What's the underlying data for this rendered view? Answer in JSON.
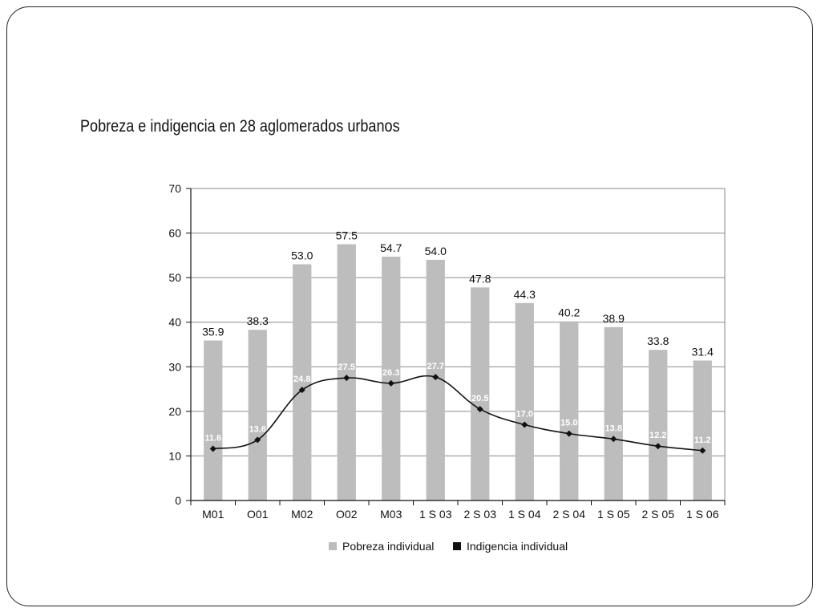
{
  "chart_data": {
    "type": "bar",
    "title": "Pobreza e indigencia en 28 aglomerados urbanos",
    "categories": [
      "M01",
      "O01",
      "M02",
      "O02",
      "M03",
      "1 S 03",
      "2 S 03",
      "1 S 04",
      "2 S 04",
      "1 S 05",
      "2 S 05",
      "1 S 06"
    ],
    "series": [
      {
        "name": "Pobreza individual",
        "type": "bar",
        "color": "#bdbdbd",
        "values": [
          35.9,
          38.3,
          53.0,
          57.5,
          54.7,
          54.0,
          47.8,
          44.3,
          40.2,
          38.9,
          33.8,
          31.4
        ],
        "labels": [
          "35.9",
          "38.3",
          "53.0",
          "57.5",
          "54.7",
          "54.0",
          "47.8",
          "44.3",
          "40.2",
          "38.9",
          "33.8",
          "31.4"
        ]
      },
      {
        "name": "Indigencia individual",
        "type": "line",
        "color": "#111111",
        "values": [
          11.6,
          13.6,
          24.8,
          27.5,
          26.3,
          27.7,
          20.5,
          17.0,
          15.0,
          13.8,
          12.2,
          11.2
        ],
        "labels": [
          "11.6",
          "13.6",
          "24.8",
          "27.5",
          "26.3",
          "27.7",
          "20.5",
          "17.0",
          "15.0",
          "13.8",
          "12.2",
          "11.2"
        ]
      }
    ],
    "ylim": [
      0,
      70
    ],
    "yticks": [
      "0",
      "10",
      "20",
      "30",
      "40",
      "50",
      "60",
      "70"
    ],
    "grid": true,
    "legend": "bottom"
  }
}
